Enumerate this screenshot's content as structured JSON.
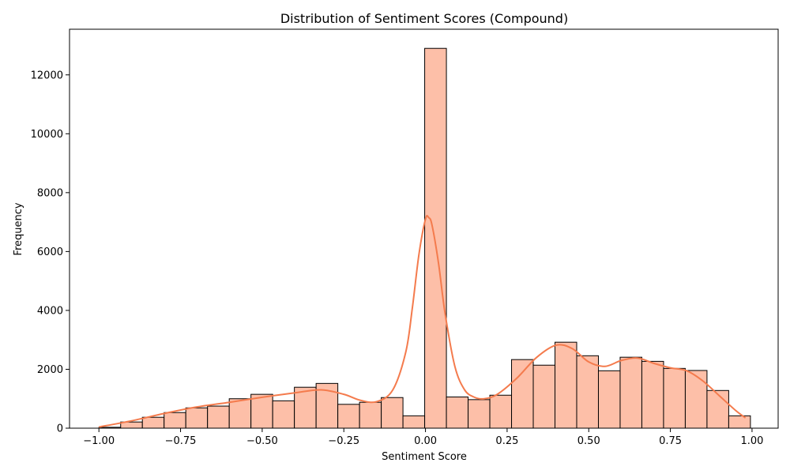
{
  "chart_data": {
    "type": "bar",
    "title": "Distribution of Sentiment Scores (Compound)",
    "xlabel": "Sentiment Score",
    "ylabel": "Frequency",
    "xlim": [
      -1.09,
      1.08
    ],
    "ylim": [
      0,
      13550
    ],
    "bin_edges": [
      -0.9999,
      -0.9334,
      -0.8669,
      -0.8004,
      -0.7339,
      -0.6674,
      -0.6009,
      -0.5344,
      -0.4679,
      -0.4014,
      -0.3349,
      -0.2684,
      -0.2019,
      -0.1354,
      -0.0689,
      -0.0024,
      0.0641,
      0.1306,
      0.1971,
      0.2636,
      0.3301,
      0.3966,
      0.4631,
      0.5296,
      0.5961,
      0.6626,
      0.7291,
      0.7956,
      0.8621,
      0.9286,
      0.9951
    ],
    "values": [
      30,
      210,
      370,
      530,
      690,
      750,
      1000,
      1150,
      930,
      1390,
      1520,
      810,
      880,
      1040,
      420,
      12900,
      1060,
      970,
      1120,
      2330,
      2140,
      2920,
      2460,
      1950,
      2410,
      2270,
      2030,
      1960,
      1280,
      420
    ],
    "kde": {
      "x": [
        -1.0,
        -0.9,
        -0.8,
        -0.7,
        -0.6,
        -0.5,
        -0.4,
        -0.32,
        -0.25,
        -0.2,
        -0.15,
        -0.1,
        -0.06,
        -0.04,
        -0.02,
        0.0,
        0.01,
        0.02,
        0.04,
        0.06,
        0.09,
        0.12,
        0.15,
        0.18,
        0.22,
        0.28,
        0.34,
        0.4,
        0.45,
        0.5,
        0.55,
        0.6,
        0.65,
        0.7,
        0.75,
        0.8,
        0.85,
        0.9,
        0.95,
        0.98
      ],
      "y": [
        40,
        250,
        500,
        720,
        880,
        1050,
        1200,
        1300,
        1150,
        950,
        900,
        1300,
        2600,
        4100,
        5900,
        7100,
        7150,
        6900,
        5600,
        3900,
        2100,
        1300,
        1050,
        1000,
        1150,
        1700,
        2400,
        2820,
        2700,
        2250,
        2100,
        2300,
        2380,
        2200,
        2050,
        1950,
        1600,
        1100,
        600,
        350
      ]
    },
    "x_ticks": [
      -1.0,
      -0.75,
      -0.5,
      -0.25,
      0.0,
      0.25,
      0.5,
      0.75,
      1.0
    ],
    "x_tick_labels": [
      "−1.00",
      "−0.75",
      "−0.50",
      "−0.25",
      "0.00",
      "0.25",
      "0.50",
      "0.75",
      "1.00"
    ],
    "y_ticks": [
      0,
      2000,
      4000,
      6000,
      8000,
      10000,
      12000
    ],
    "y_tick_labels": [
      "0",
      "2000",
      "4000",
      "6000",
      "8000",
      "10000",
      "12000"
    ],
    "grid": false,
    "bar_color": "#fdbfa8",
    "bar_edge_color": "#000000",
    "kde_color": "#f47b4d"
  }
}
